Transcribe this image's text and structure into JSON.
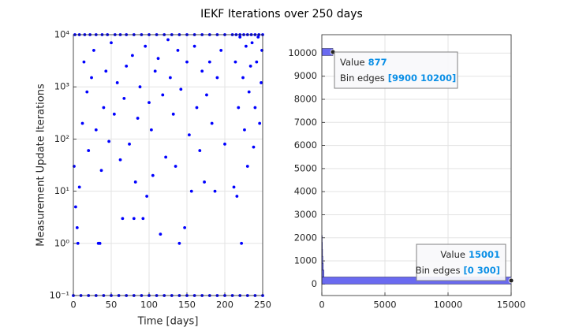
{
  "title": "IEKF Iterations over 250 days",
  "chart_data": [
    {
      "type": "scatter",
      "xlabel": "Time [days]",
      "ylabel": "Measurement Update Iterations",
      "color": "#0000ff",
      "log_y": true,
      "grid": true,
      "xlim": [
        0,
        250
      ],
      "xticks": [
        0,
        50,
        100,
        150,
        200,
        250
      ],
      "ylim": [
        0.1,
        10000
      ],
      "yticks": [
        {
          "value": 0.1,
          "label": "10⁻¹"
        },
        {
          "value": 1,
          "label": "10⁰"
        },
        {
          "value": 10,
          "label": "10¹"
        },
        {
          "value": 100,
          "label": "10²"
        },
        {
          "value": 1000,
          "label": "10³"
        },
        {
          "value": 10000,
          "label": "10⁴"
        }
      ],
      "x": [
        2,
        8,
        15,
        22,
        30,
        38,
        45,
        55,
        62,
        70,
        80,
        90,
        100,
        110,
        120,
        130,
        140,
        150,
        160,
        170,
        180,
        190,
        200,
        210,
        215,
        220,
        225,
        230,
        235,
        240,
        245,
        250,
        0,
        10,
        20,
        30,
        40,
        50,
        60,
        70,
        80,
        90,
        100,
        110,
        120,
        130,
        140,
        150,
        160,
        170,
        180,
        190,
        200,
        210,
        220,
        230,
        240,
        250,
        1,
        3,
        5,
        6,
        8,
        12,
        14,
        18,
        20,
        24,
        27,
        30,
        33,
        35,
        37,
        40,
        43,
        47,
        50,
        54,
        58,
        62,
        65,
        67,
        70,
        74,
        78,
        80,
        82,
        85,
        88,
        92,
        95,
        97,
        100,
        103,
        105,
        108,
        112,
        115,
        118,
        122,
        125,
        128,
        132,
        135,
        138,
        140,
        142,
        147,
        150,
        153,
        156,
        160,
        163,
        167,
        170,
        173,
        176,
        180,
        183,
        187,
        190,
        195,
        200,
        212,
        214,
        216,
        218,
        220,
        222,
        224,
        226,
        228,
        230,
        232,
        234,
        236,
        238,
        240,
        242,
        244,
        246,
        248,
        249
      ],
      "y": [
        10000,
        10000,
        10000,
        10000,
        10000,
        10000,
        10000,
        10000,
        10000,
        10000,
        10000,
        10000,
        10000,
        10000,
        10000,
        10000,
        10000,
        10000,
        10000,
        10000,
        10000,
        10000,
        10000,
        10000,
        10000,
        10000,
        10000,
        10000,
        10000,
        10000,
        10000,
        10000,
        0.1,
        0.1,
        0.1,
        0.1,
        0.1,
        0.1,
        0.1,
        0.1,
        0.1,
        0.1,
        0.1,
        0.1,
        0.1,
        0.1,
        0.1,
        0.1,
        0.1,
        0.1,
        0.1,
        0.1,
        0.1,
        0.1,
        0.1,
        0.1,
        0.1,
        0.1,
        30,
        5,
        2,
        1,
        12,
        200,
        3000,
        800,
        60,
        1500,
        5000,
        150,
        1,
        1,
        25,
        400,
        2000,
        90,
        7000,
        300,
        1200,
        40,
        3,
        600,
        2500,
        80,
        4000,
        3,
        15,
        250,
        1000,
        3,
        6000,
        8,
        500,
        150,
        20,
        2000,
        3500,
        1.5,
        700,
        45,
        8000,
        1500,
        300,
        30,
        5000,
        1,
        900,
        2,
        3000,
        120,
        10,
        6000,
        400,
        60,
        2000,
        15,
        700,
        3000,
        200,
        10,
        1500,
        5000,
        80,
        12,
        3000,
        8,
        400,
        9000,
        1,
        1500,
        150,
        6000,
        30,
        800,
        2500,
        7000,
        70,
        400,
        3000,
        9000,
        200,
        1200,
        5000
      ]
    },
    {
      "type": "histogram",
      "orientation": "horizontal",
      "color": "#6a6af0",
      "edgecolor": "#1c1c66",
      "grid": true,
      "xlim": [
        0,
        15000
      ],
      "xticks": [
        0,
        5000,
        10000,
        15000
      ],
      "ylim": [
        -500,
        10800
      ],
      "yticks": [
        0,
        1000,
        2000,
        3000,
        4000,
        5000,
        6000,
        7000,
        8000,
        9000,
        10000
      ],
      "bins": [
        0,
        300,
        600,
        900,
        1200,
        1500,
        1800,
        2100,
        2400,
        2700,
        3000,
        3300,
        3600,
        3900,
        4200,
        4500,
        4800,
        5100,
        5400,
        5700,
        6000,
        6300,
        6600,
        6900,
        7200,
        7500,
        7800,
        8100,
        8400,
        8700,
        9000,
        9300,
        9600,
        9900,
        10200
      ],
      "counts": [
        15001,
        160,
        110,
        75,
        55,
        40,
        28,
        0,
        0,
        0,
        0,
        0,
        0,
        0,
        0,
        0,
        0,
        0,
        0,
        0,
        0,
        0,
        0,
        0,
        0,
        0,
        0,
        0,
        0,
        0,
        0,
        0,
        0,
        877
      ],
      "datatips": [
        {
          "value_label": "Value",
          "value": 877,
          "edges_label": "Bin edges",
          "edges": "[9900 10200]"
        },
        {
          "value_label": "Value",
          "value": 15001,
          "edges_label": "Bin edges",
          "edges": "[0 300]"
        }
      ]
    }
  ]
}
